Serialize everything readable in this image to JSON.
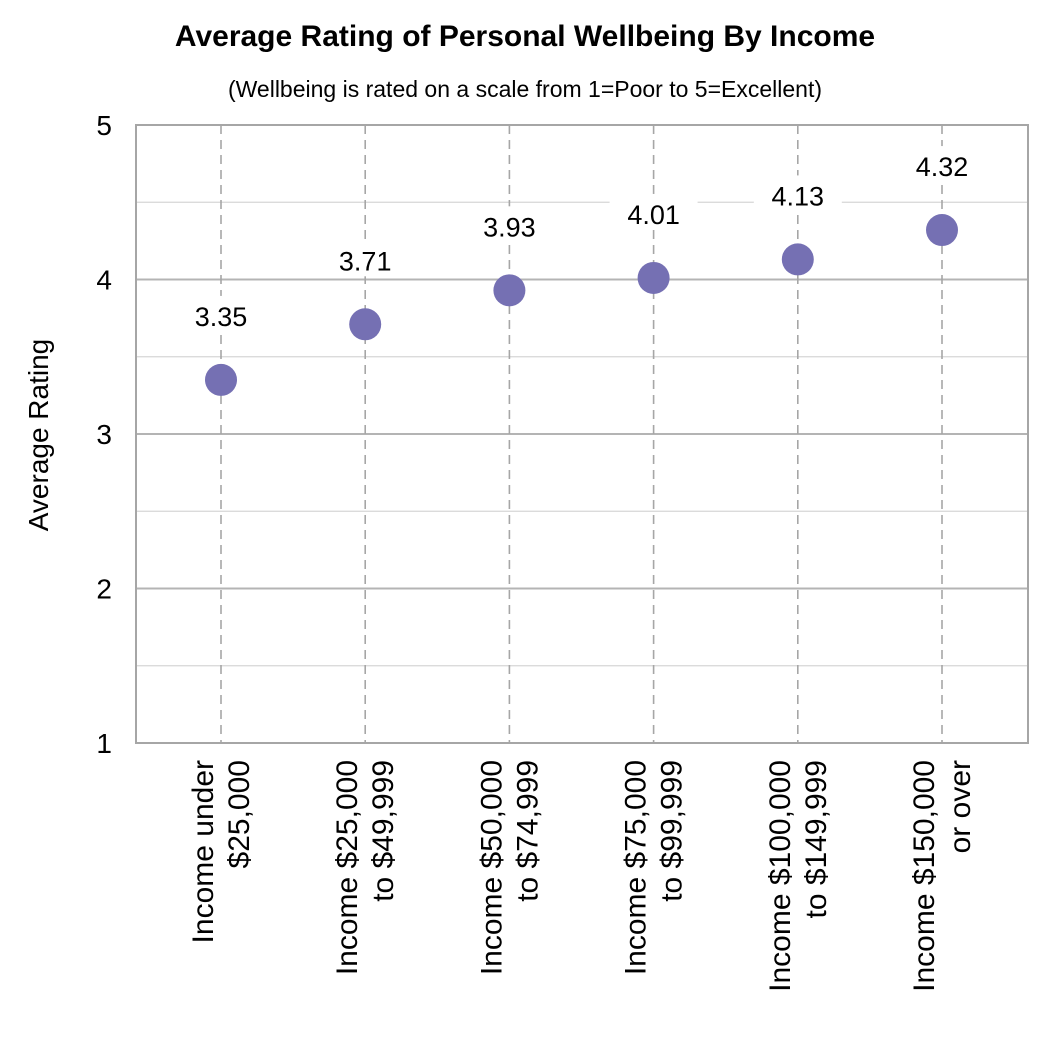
{
  "chart_data": {
    "type": "scatter",
    "title": "Average Rating of Personal Wellbeing By Income",
    "subtitle": "(Wellbeing is rated on a scale from 1=Poor to 5=Excellent)",
    "xlabel": "",
    "ylabel": "Average Rating",
    "ylim": [
      1,
      5
    ],
    "yticks": [
      "1",
      "2",
      "3",
      "4",
      "5"
    ],
    "grid": true,
    "categories": [
      [
        "Income under",
        "$25,000"
      ],
      [
        "Income $25,000",
        "to $49,999"
      ],
      [
        "Income $50,000",
        "to $74,999"
      ],
      [
        "Income $75,000",
        "to $99,999"
      ],
      [
        "Income $100,000",
        "to $149,999"
      ],
      [
        "Income $150,000",
        "or over"
      ]
    ],
    "values": [
      3.35,
      3.71,
      3.93,
      4.01,
      4.13,
      4.32
    ],
    "data_labels": [
      "3.35",
      "3.71",
      "3.93",
      "4.01",
      "4.13",
      "4.32"
    ],
    "colors": {
      "marker": "#7570b3",
      "grid": "#c8c8c8",
      "axis": "#a6a6a6"
    }
  }
}
